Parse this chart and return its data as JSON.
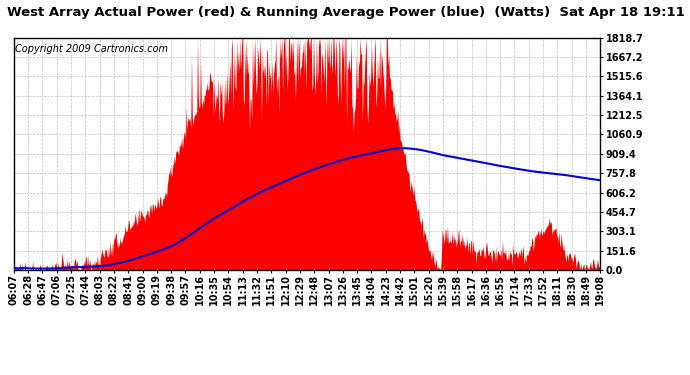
{
  "title": "West Array Actual Power (red) & Running Average Power (blue)  (Watts)  Sat Apr 18 19:11",
  "copyright": "Copyright 2009 Cartronics.com",
  "background_color": "#ffffff",
  "plot_bg_color": "#ffffff",
  "grid_color": "#c0c0c0",
  "yticks": [
    0.0,
    151.6,
    303.1,
    454.7,
    606.2,
    757.8,
    909.4,
    1060.9,
    1212.5,
    1364.1,
    1515.6,
    1667.2,
    1818.7
  ],
  "ylim": [
    0.0,
    1818.7
  ],
  "xtick_labels": [
    "06:07",
    "06:28",
    "06:47",
    "07:06",
    "07:25",
    "07:44",
    "08:03",
    "08:22",
    "08:41",
    "09:00",
    "09:19",
    "09:38",
    "09:57",
    "10:16",
    "10:35",
    "10:54",
    "11:13",
    "11:32",
    "11:51",
    "12:10",
    "12:29",
    "12:48",
    "13:07",
    "13:26",
    "13:45",
    "14:04",
    "14:23",
    "14:42",
    "15:01",
    "15:20",
    "15:39",
    "15:58",
    "16:17",
    "16:36",
    "16:55",
    "17:14",
    "17:33",
    "17:52",
    "18:11",
    "18:30",
    "18:49",
    "19:08"
  ],
  "red_color": "#ff0000",
  "blue_color": "#0000cc",
  "title_fontsize": 9.5,
  "copyright_fontsize": 7,
  "tick_fontsize": 7,
  "n_points": 780
}
